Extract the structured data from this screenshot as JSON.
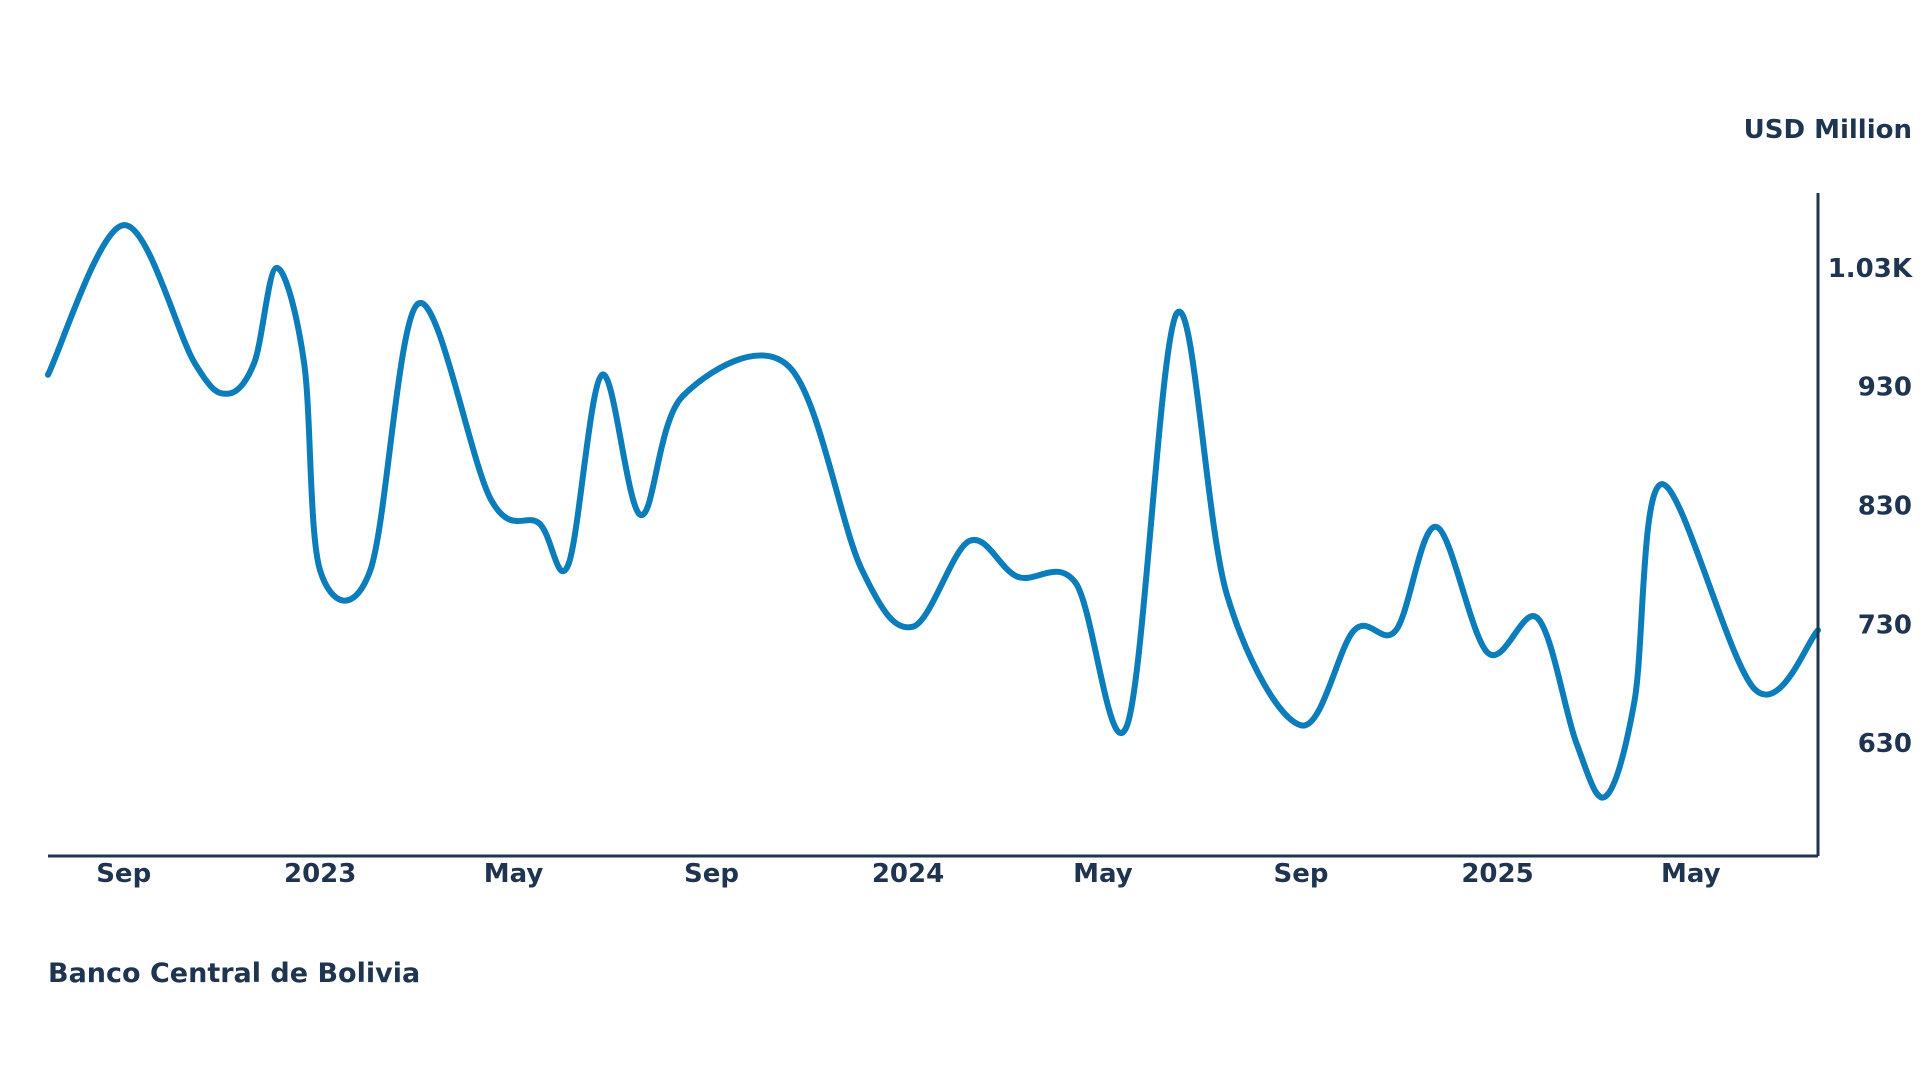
{
  "chart_data": {
    "type": "line",
    "unit_label": "USD Million",
    "source": "Banco Central de Bolivia",
    "y_axis_position": "right",
    "grid": false,
    "legend": "none",
    "series_color": "#0b7dbb",
    "axis_color": "#1f3450",
    "ylim": [
      535,
      1093
    ],
    "yticks": [
      {
        "value": 630,
        "label": "630"
      },
      {
        "value": 730,
        "label": "730"
      },
      {
        "value": 830,
        "label": "830"
      },
      {
        "value": 930,
        "label": "930"
      },
      {
        "value": 1030,
        "label": "1.03K"
      }
    ],
    "xticks": [
      {
        "date": "2022-09-01",
        "label": "Sep"
      },
      {
        "date": "2023-01-01",
        "label": "2023"
      },
      {
        "date": "2023-05-01",
        "label": "May"
      },
      {
        "date": "2023-09-01",
        "label": "Sep"
      },
      {
        "date": "2024-01-01",
        "label": "2024"
      },
      {
        "date": "2024-05-01",
        "label": "May"
      },
      {
        "date": "2024-09-01",
        "label": "Sep"
      },
      {
        "date": "2025-01-01",
        "label": "2025"
      },
      {
        "date": "2025-05-01",
        "label": "May"
      }
    ],
    "xlim": [
      "2022-07-16",
      "2025-07-19"
    ],
    "series": [
      {
        "values": [
          {
            "x": "2022-07-16",
            "y": 940
          },
          {
            "x": "2022-09-01",
            "y": 1066
          },
          {
            "x": "2022-10-15",
            "y": 950
          },
          {
            "x": "2022-11-04",
            "y": 924
          },
          {
            "x": "2022-11-21",
            "y": 950
          },
          {
            "x": "2022-12-05",
            "y": 1030
          },
          {
            "x": "2022-12-22",
            "y": 950
          },
          {
            "x": "2023-01-01",
            "y": 775
          },
          {
            "x": "2023-02-01",
            "y": 775
          },
          {
            "x": "2023-03-03",
            "y": 1000
          },
          {
            "x": "2023-04-17",
            "y": 835
          },
          {
            "x": "2023-05-17",
            "y": 815
          },
          {
            "x": "2023-06-04",
            "y": 780
          },
          {
            "x": "2023-06-25",
            "y": 940
          },
          {
            "x": "2023-07-19",
            "y": 822
          },
          {
            "x": "2023-08-14",
            "y": 922
          },
          {
            "x": "2023-10-19",
            "y": 947
          },
          {
            "x": "2023-12-03",
            "y": 777
          },
          {
            "x": "2024-01-04",
            "y": 728
          },
          {
            "x": "2024-02-08",
            "y": 800
          },
          {
            "x": "2024-03-09",
            "y": 770
          },
          {
            "x": "2024-04-14",
            "y": 765
          },
          {
            "x": "2024-05-16",
            "y": 645
          },
          {
            "x": "2024-06-16",
            "y": 992
          },
          {
            "x": "2024-07-17",
            "y": 755
          },
          {
            "x": "2024-09-01",
            "y": 645
          },
          {
            "x": "2024-10-04",
            "y": 725
          },
          {
            "x": "2024-10-30",
            "y": 725
          },
          {
            "x": "2024-11-24",
            "y": 812
          },
          {
            "x": "2024-12-26",
            "y": 706
          },
          {
            "x": "2025-01-26",
            "y": 735
          },
          {
            "x": "2025-02-19",
            "y": 630
          },
          {
            "x": "2025-03-09",
            "y": 585
          },
          {
            "x": "2025-03-27",
            "y": 665
          },
          {
            "x": "2025-04-13",
            "y": 848
          },
          {
            "x": "2025-06-10",
            "y": 675
          },
          {
            "x": "2025-07-19",
            "y": 725
          }
        ]
      }
    ]
  }
}
